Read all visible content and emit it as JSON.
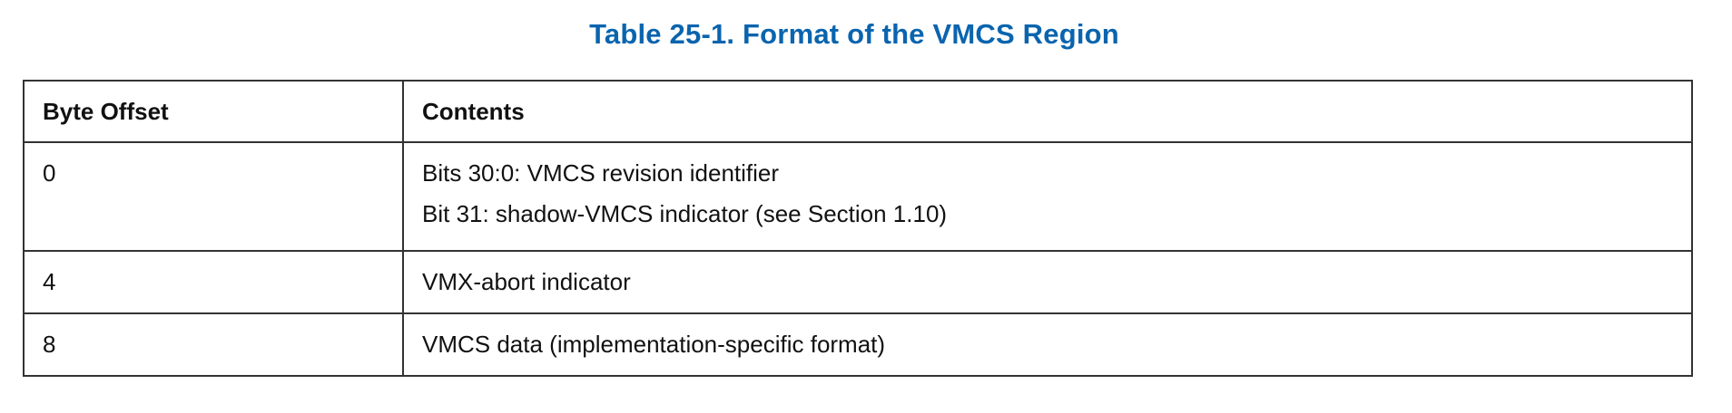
{
  "title": "Table 25-1.  Format of the VMCS Region",
  "table": {
    "headers": [
      "Byte Offset",
      "Contents"
    ],
    "rows": [
      {
        "offset": "0",
        "contents": [
          "Bits 30:0: VMCS revision identifier",
          "Bit 31: shadow-VMCS indicator (see Section 1.10)"
        ]
      },
      {
        "offset": "4",
        "contents": [
          "VMX-abort indicator"
        ]
      },
      {
        "offset": "8",
        "contents": [
          "VMCS data (implementation-specific format)"
        ]
      }
    ]
  }
}
